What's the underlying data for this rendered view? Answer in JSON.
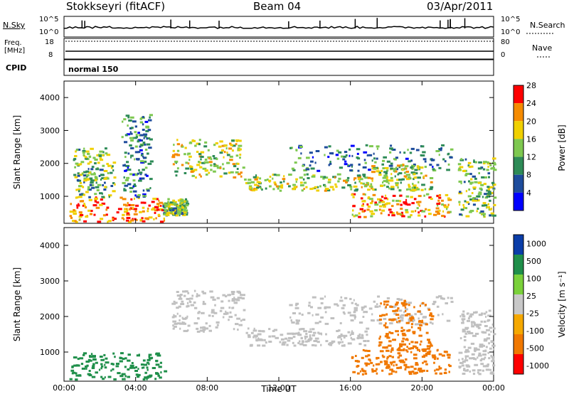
{
  "header": {
    "station": "Stokkseyri (fitACF)",
    "beam": "Beam 04",
    "date": "03/Apr/2011"
  },
  "summary_panels": {
    "nsky_label": "N.Sky",
    "nsky_ticks": [
      "10^5",
      "10^0"
    ],
    "nsearch_label": "N.Search",
    "freq_label_line1": "Freq.",
    "freq_label_line2": "[MHz]",
    "freq_ticks": [
      "18",
      "8"
    ],
    "nave_ticks": [
      "80",
      "0"
    ],
    "nave_label": "Nave",
    "cpid_label": "CPID",
    "cpid_value": "normal 150"
  },
  "colors": {
    "power_scale": [
      "#0000ff",
      "#1e4c9c",
      "#2e8b57",
      "#7ec850",
      "#f0d000",
      "#f58b00",
      "#ff0000"
    ],
    "velocity_scale": [
      "#ff0000",
      "#f07800",
      "#f5a800",
      "#c8c8c8",
      "#7ad13a",
      "#1f8f4a",
      "#0a3da8"
    ],
    "ground_scatter": "#c0c0c0"
  },
  "chart_data": [
    {
      "type": "heatmap",
      "title": "Power",
      "xlabel": "Time UT",
      "ylabel": "Slant Range [km]",
      "x_ticks": [
        "00:00",
        "04:00",
        "08:00",
        "12:00",
        "16:00",
        "20:00",
        "00:00"
      ],
      "y_ticks": [
        "1000",
        "2000",
        "3000",
        "4000"
      ],
      "xlim_hours": [
        0,
        24
      ],
      "ylim_km": [
        180,
        4500
      ],
      "colorbar_label": "Power [dB]",
      "colorbar_ticks": [
        "4",
        "8",
        "12",
        "16",
        "20",
        "24",
        "28"
      ],
      "colorbar_range": [
        0,
        30
      ],
      "regions": [
        {
          "t0": 0.3,
          "t1": 5.6,
          "r0": 250,
          "r1": 1000,
          "level": 24
        },
        {
          "t0": 0.5,
          "t1": 2.8,
          "r0": 1000,
          "r1": 2500,
          "level": 14
        },
        {
          "t0": 3.2,
          "t1": 4.8,
          "r0": 1000,
          "r1": 3500,
          "level": 10
        },
        {
          "t0": 5.5,
          "t1": 6.8,
          "r0": 450,
          "r1": 950,
          "level": 14
        },
        {
          "t0": 6.0,
          "t1": 10.0,
          "r0": 1600,
          "r1": 2750,
          "level": 18
        },
        {
          "t0": 10.0,
          "t1": 17.0,
          "r0": 1200,
          "r1": 1700,
          "level": 16
        },
        {
          "t0": 12.5,
          "t1": 21.6,
          "r0": 1800,
          "r1": 2600,
          "level": 10
        },
        {
          "t0": 17.0,
          "t1": 20.5,
          "r0": 1200,
          "r1": 2000,
          "level": 16
        },
        {
          "t0": 16.0,
          "t1": 21.5,
          "r0": 400,
          "r1": 1100,
          "level": 22
        },
        {
          "t0": 22.0,
          "t1": 24.0,
          "r0": 400,
          "r1": 2200,
          "level": 14
        }
      ]
    },
    {
      "type": "heatmap",
      "title": "Velocity",
      "xlabel": "Time UT",
      "ylabel": "Slant Range [km]",
      "x_ticks": [
        "00:00",
        "04:00",
        "08:00",
        "12:00",
        "16:00",
        "20:00",
        "00:00"
      ],
      "y_ticks": [
        "1000",
        "2000",
        "3000",
        "4000"
      ],
      "xlim_hours": [
        0,
        24
      ],
      "ylim_km": [
        180,
        4500
      ],
      "colorbar_label": "Velocity [m s⁻¹]",
      "colorbar_ticks": [
        "1000",
        "500",
        "100",
        "25",
        "-25",
        "-100",
        "-500",
        "-1000"
      ],
      "regions": [
        {
          "t0": 0.3,
          "t1": 5.6,
          "r0": 250,
          "r1": 1000,
          "velocity": 300
        },
        {
          "t0": 6.0,
          "t1": 10.0,
          "r0": 1600,
          "r1": 2750,
          "velocity": 0
        },
        {
          "t0": 10.0,
          "t1": 17.0,
          "r0": 1200,
          "r1": 1700,
          "velocity": 0
        },
        {
          "t0": 12.5,
          "t1": 21.6,
          "r0": 1800,
          "r1": 2600,
          "velocity": 0
        },
        {
          "t0": 16.0,
          "t1": 21.5,
          "r0": 400,
          "r1": 1100,
          "velocity": -400
        },
        {
          "t0": 17.5,
          "t1": 20.5,
          "r0": 1000,
          "r1": 2500,
          "velocity": -200
        },
        {
          "t0": 22.0,
          "t1": 24.0,
          "r0": 400,
          "r1": 2200,
          "velocity": 0
        }
      ]
    }
  ]
}
